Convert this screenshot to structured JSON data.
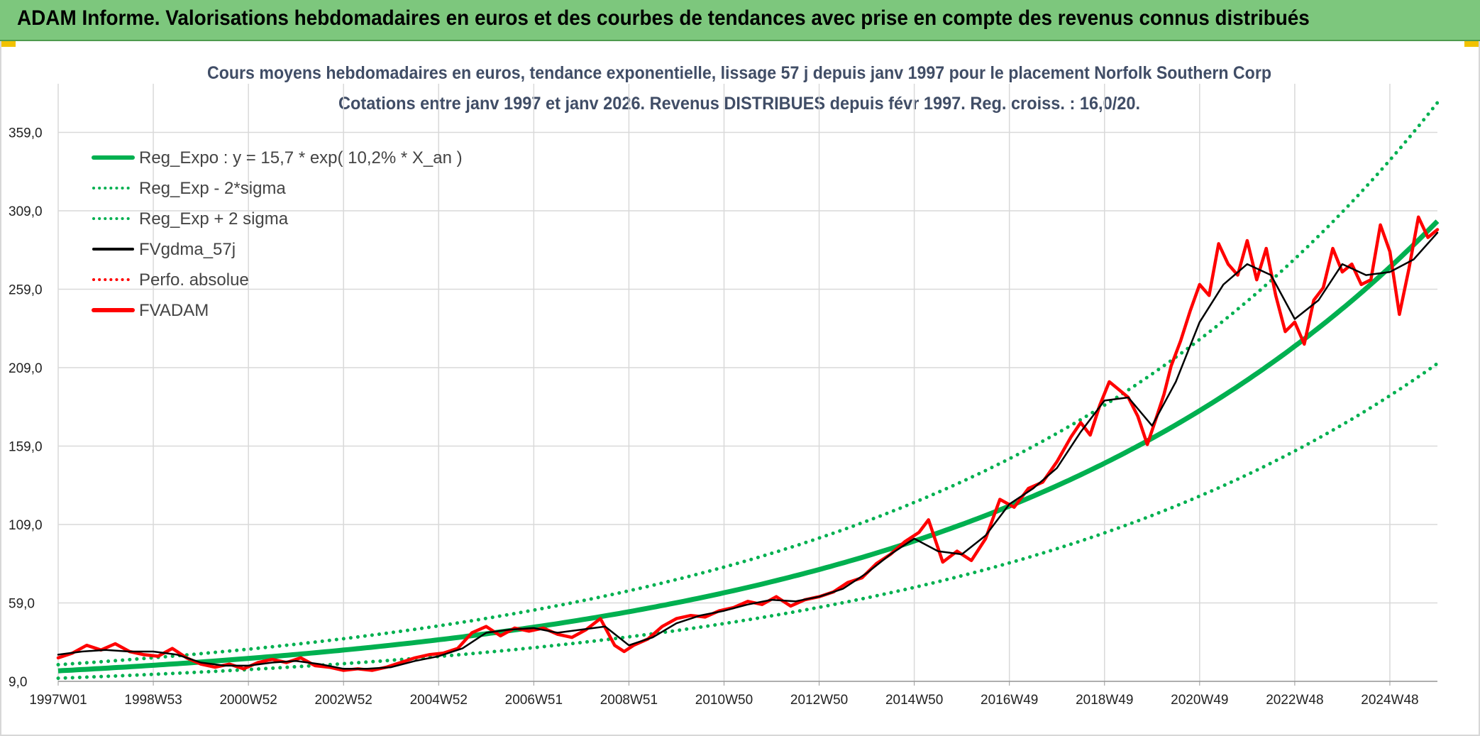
{
  "header": {
    "title": "ADAM Informe. Valorisations hebdomadaires en euros et des courbes de tendances avec prise en compte des revenus connus distribués"
  },
  "colors": {
    "header_bg": "#7dc77d",
    "trend": "#00b050",
    "price": "#ff0000",
    "smooth": "#000000",
    "grid": "#d9d9d9"
  },
  "chart_data": {
    "type": "line",
    "title": "Cours moyens hebdomadaires en euros, tendance exponentielle, lissage 57 j depuis janv 1997 pour le placement Norfolk Southern Corp",
    "subtitle": "Cotations entre janv 1997 et janv 2026. Revenus DISTRIBUES depuis févr 1997. Reg. croiss. : 16,0/20.",
    "xlabel": "",
    "ylabel": "",
    "x_range": [
      1997.0,
      2026.0
    ],
    "ylim": [
      9,
      390
    ],
    "y_ticks": [
      "9,0",
      "59,0",
      "109,0",
      "159,0",
      "209,0",
      "259,0",
      "309,0",
      "359,0"
    ],
    "y_tick_values": [
      9,
      59,
      109,
      159,
      209,
      259,
      309,
      359
    ],
    "x_ticks": [
      {
        "label": "1997W01",
        "x": 1997.0
      },
      {
        "label": "1998W53",
        "x": 1999.0
      },
      {
        "label": "2000W52",
        "x": 2001.0
      },
      {
        "label": "2002W52",
        "x": 2003.0
      },
      {
        "label": "2004W52",
        "x": 2005.0
      },
      {
        "label": "2006W51",
        "x": 2007.0
      },
      {
        "label": "2008W51",
        "x": 2009.0
      },
      {
        "label": "2010W50",
        "x": 2011.0
      },
      {
        "label": "2012W50",
        "x": 2013.0
      },
      {
        "label": "2014W50",
        "x": 2015.0
      },
      {
        "label": "2016W49",
        "x": 2017.0
      },
      {
        "label": "2018W49",
        "x": 2019.0
      },
      {
        "label": "2020W49",
        "x": 2021.0
      },
      {
        "label": "2022W48",
        "x": 2023.0
      },
      {
        "label": "2024W48",
        "x": 2025.0
      }
    ],
    "legend": [
      {
        "name": "Reg_Expo : y = 15,7 * exp( 10,2% *  X_an )",
        "color": "#00b050",
        "style": "solid-thick"
      },
      {
        "name": "Reg_Exp - 2*sigma",
        "color": "#00b050",
        "style": "dotted"
      },
      {
        "name": "Reg_Exp + 2 sigma",
        "color": "#00b050",
        "style": "dotted"
      },
      {
        "name": "FVgdma_57j",
        "color": "#000000",
        "style": "solid"
      },
      {
        "name": "Perfo. absolue",
        "color": "#ff0000",
        "style": "dotted"
      },
      {
        "name": "FVADAM",
        "color": "#ff0000",
        "style": "solid-thick"
      }
    ],
    "legend_position": "top-left",
    "regression": {
      "a": 15.7,
      "rate": 0.102,
      "upper_factor": 1.25,
      "lower_factor": 0.7,
      "upper_cap": 390
    },
    "series": [
      {
        "name": "FVADAM",
        "x": [
          1997.0,
          1997.3,
          1997.6,
          1997.9,
          1998.2,
          1998.5,
          1998.8,
          1999.1,
          1999.4,
          1999.7,
          2000.0,
          2000.3,
          2000.6,
          2000.9,
          2001.2,
          2001.5,
          2001.8,
          2002.1,
          2002.4,
          2002.7,
          2003.0,
          2003.3,
          2003.6,
          2003.9,
          2004.2,
          2004.5,
          2004.8,
          2005.1,
          2005.4,
          2005.7,
          2006.0,
          2006.3,
          2006.6,
          2006.9,
          2007.2,
          2007.5,
          2007.8,
          2008.1,
          2008.4,
          2008.7,
          2008.9,
          2009.1,
          2009.4,
          2009.7,
          2010.0,
          2010.3,
          2010.6,
          2010.9,
          2011.2,
          2011.5,
          2011.8,
          2012.1,
          2012.4,
          2012.7,
          2013.0,
          2013.3,
          2013.6,
          2013.9,
          2014.2,
          2014.5,
          2014.8,
          2015.1,
          2015.3,
          2015.6,
          2015.9,
          2016.2,
          2016.5,
          2016.8,
          2017.1,
          2017.4,
          2017.7,
          2018.0,
          2018.3,
          2018.5,
          2018.7,
          2018.9,
          2019.1,
          2019.3,
          2019.5,
          2019.7,
          2019.9,
          2020.1,
          2020.25,
          2020.4,
          2020.6,
          2020.8,
          2021.0,
          2021.2,
          2021.4,
          2021.6,
          2021.8,
          2022.0,
          2022.2,
          2022.4,
          2022.6,
          2022.8,
          2023.0,
          2023.2,
          2023.4,
          2023.6,
          2023.8,
          2024.0,
          2024.2,
          2024.4,
          2024.6,
          2024.8,
          2025.0,
          2025.2,
          2025.4,
          2025.6,
          2025.8,
          2026.0
        ],
        "values": [
          24,
          27,
          32,
          29,
          33,
          28,
          26,
          25,
          30,
          24,
          20,
          18,
          20,
          17,
          21,
          23,
          21,
          24,
          19,
          18,
          16,
          17,
          16,
          18,
          21,
          24,
          26,
          27,
          30,
          40,
          44,
          38,
          43,
          41,
          43,
          39,
          37,
          42,
          49,
          32,
          28,
          32,
          36,
          44,
          49,
          51,
          50,
          54,
          56,
          60,
          58,
          63,
          57,
          61,
          63,
          66,
          72,
          75,
          84,
          90,
          98,
          104,
          112,
          85,
          92,
          86,
          100,
          125,
          120,
          132,
          136,
          149,
          165,
          174,
          166,
          185,
          200,
          195,
          190,
          178,
          160,
          178,
          192,
          210,
          226,
          245,
          262,
          255,
          288,
          275,
          268,
          290,
          265,
          285,
          255,
          232,
          238,
          224,
          252,
          260,
          285,
          270,
          275,
          262,
          265,
          300,
          283,
          243,
          272,
          305,
          292,
          297
        ]
      },
      {
        "name": "FVgdma_57j",
        "x": [
          1997.0,
          1997.5,
          1998.0,
          1998.5,
          1999.0,
          1999.5,
          2000.0,
          2000.5,
          2001.0,
          2001.5,
          2002.0,
          2002.5,
          2003.0,
          2003.5,
          2004.0,
          2004.5,
          2005.0,
          2005.5,
          2006.0,
          2006.5,
          2007.0,
          2007.5,
          2008.0,
          2008.5,
          2009.0,
          2009.5,
          2010.0,
          2010.5,
          2011.0,
          2011.5,
          2012.0,
          2012.5,
          2013.0,
          2013.5,
          2014.0,
          2014.5,
          2015.0,
          2015.5,
          2016.0,
          2016.5,
          2017.0,
          2017.5,
          2018.0,
          2018.5,
          2019.0,
          2019.5,
          2020.0,
          2020.5,
          2021.0,
          2021.5,
          2022.0,
          2022.5,
          2023.0,
          2023.5,
          2024.0,
          2024.5,
          2025.0,
          2025.5,
          2026.0
        ],
        "values": [
          26,
          28,
          29,
          28,
          28,
          26,
          21,
          19,
          19,
          21,
          22,
          20,
          17,
          17,
          18,
          22,
          25,
          30,
          40,
          42,
          43,
          40,
          42,
          44,
          32,
          37,
          46,
          51,
          54,
          58,
          61,
          60,
          63,
          68,
          78,
          90,
          100,
          92,
          90,
          102,
          122,
          132,
          145,
          168,
          188,
          190,
          172,
          200,
          238,
          262,
          275,
          268,
          240,
          252,
          275,
          268,
          270,
          278,
          295
        ]
      },
      {
        "name": "Reg_Expo : y = 15,7 * exp( 10,2% *  X_an )",
        "formula": "15.7 * exp(0.102 * (year - 1997))"
      },
      {
        "name": "Reg_Exp - 2*sigma",
        "formula": "0.7 * 15.7 * exp(0.102 * (year - 1997))"
      },
      {
        "name": "Reg_Exp + 2 sigma",
        "formula": "1.25 * 15.7 * exp(0.102 * (year - 1997)), capped at 390"
      }
    ]
  }
}
